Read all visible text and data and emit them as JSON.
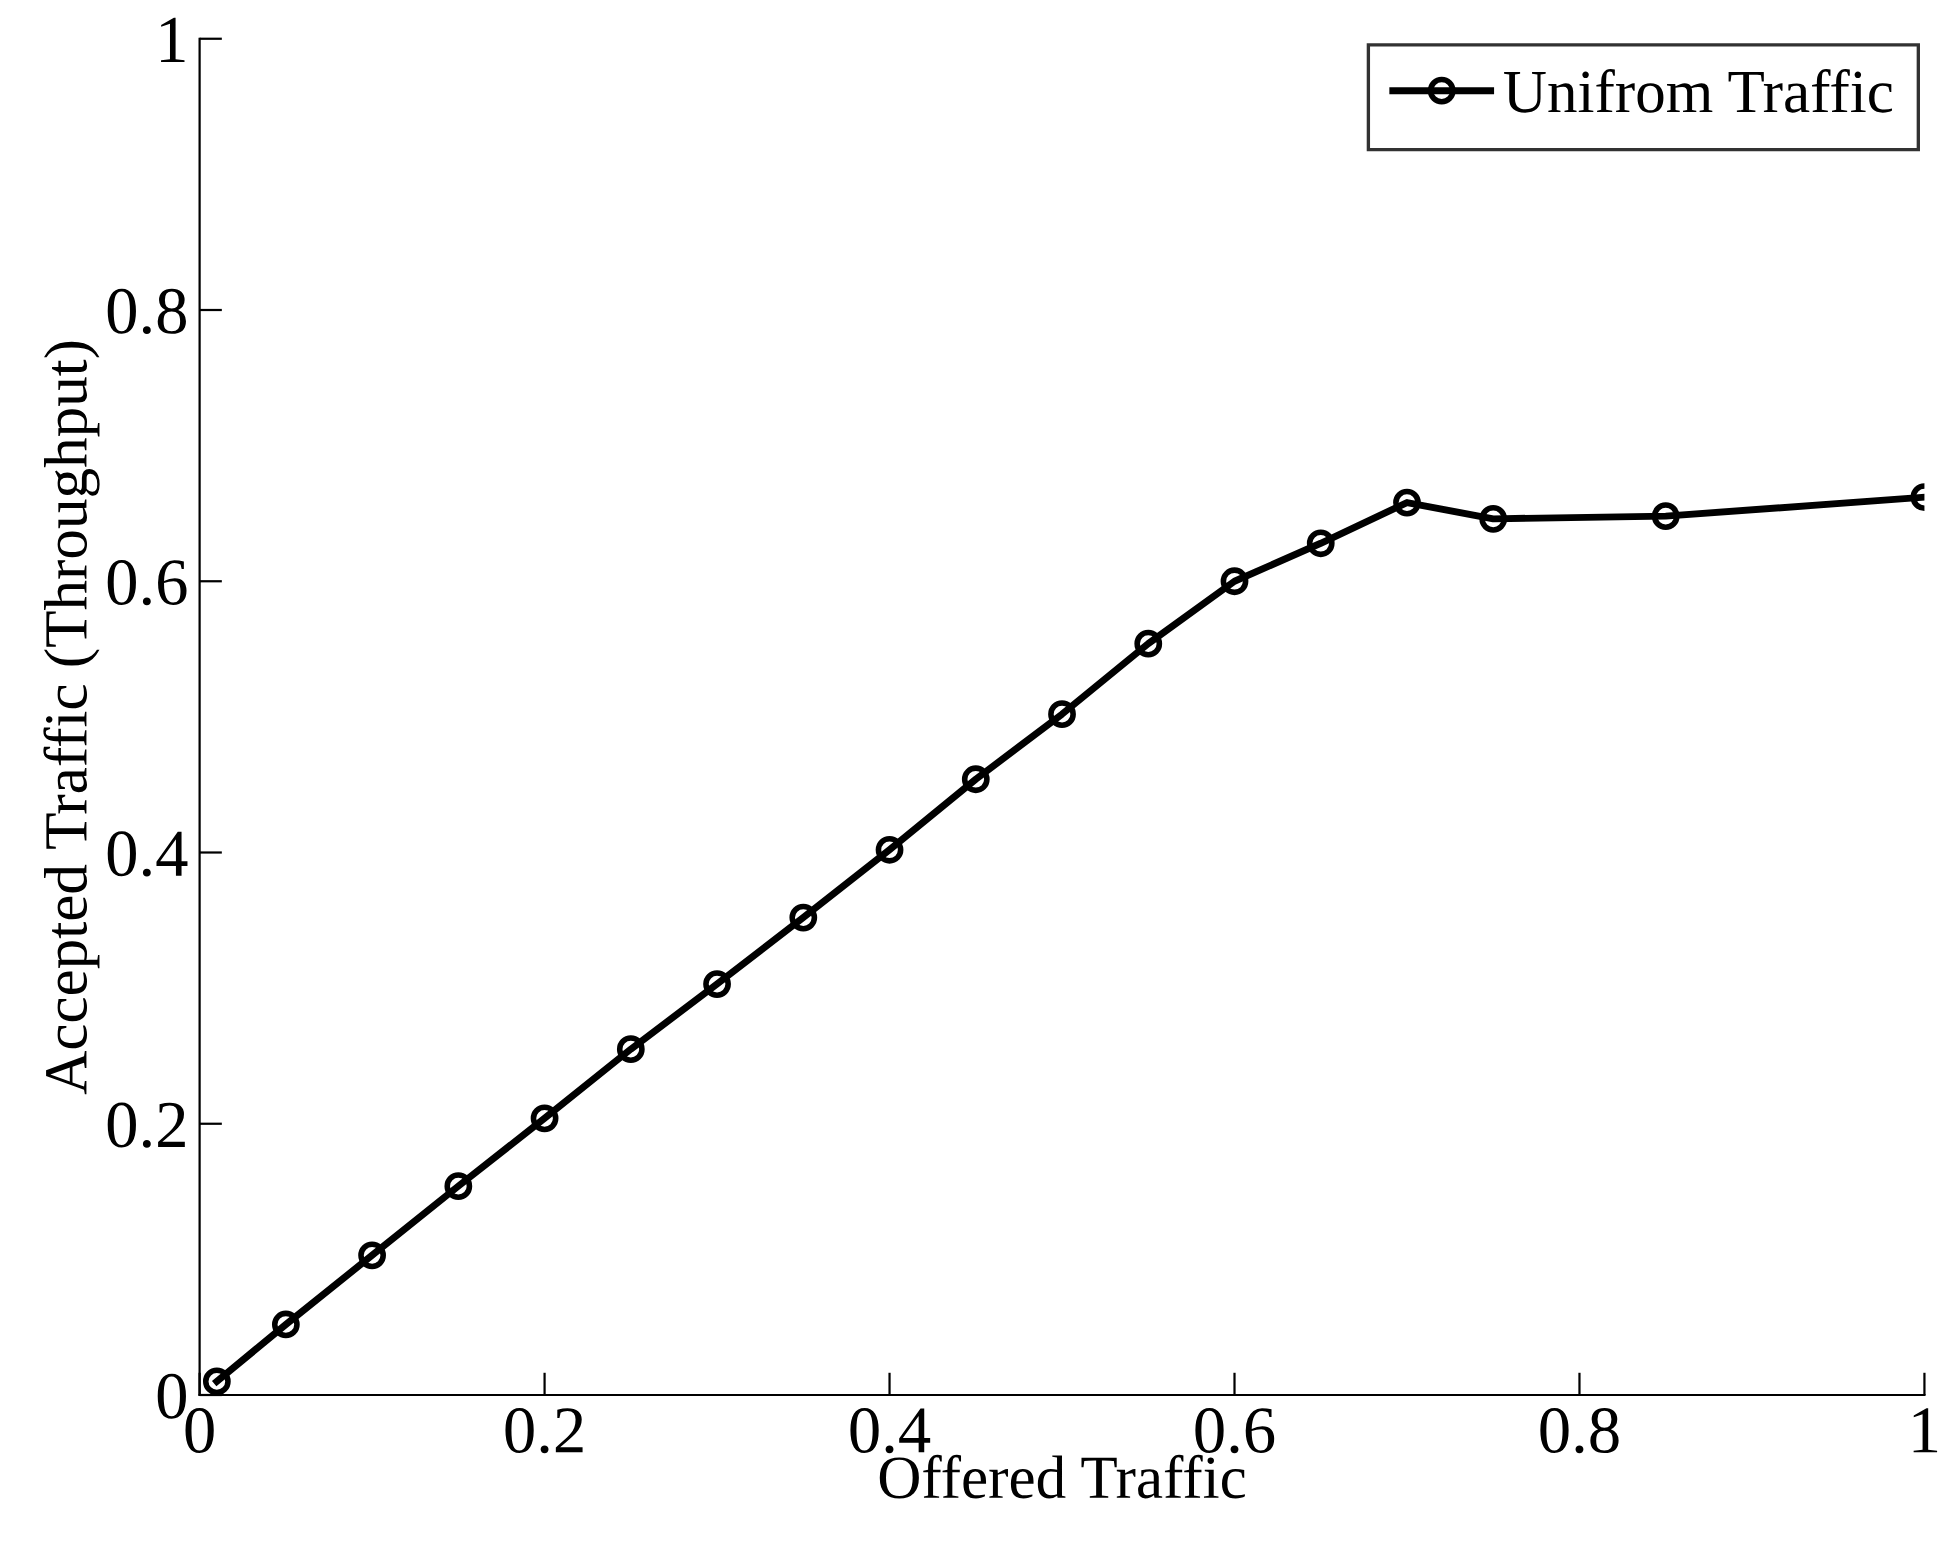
{
  "chart_data": {
    "type": "line",
    "xlabel": "Offered Traffic",
    "ylabel": "Accepted Traffic (Throughput)",
    "x": [
      0.01,
      0.05,
      0.1,
      0.15,
      0.2,
      0.25,
      0.3,
      0.35,
      0.4,
      0.45,
      0.5,
      0.55,
      0.6,
      0.65,
      0.7,
      0.75,
      0.85,
      1.0
    ],
    "series": [
      {
        "name": "Unifrom Traffic",
        "color": "#000000",
        "values": [
          0.01,
          0.052,
          0.103,
          0.154,
          0.204,
          0.255,
          0.303,
          0.352,
          0.402,
          0.454,
          0.502,
          0.554,
          0.6,
          0.628,
          0.658,
          0.646,
          0.648,
          0.662
        ]
      }
    ],
    "xlim": [
      0,
      1
    ],
    "ylim": [
      0,
      1
    ],
    "xticks": [
      0,
      0.2,
      0.4,
      0.6,
      0.8,
      1
    ],
    "yticks": [
      0,
      0.2,
      0.4,
      0.6,
      0.8,
      1
    ],
    "marker": "circle",
    "line_style": "solid",
    "grid": false,
    "legend": "top right"
  }
}
